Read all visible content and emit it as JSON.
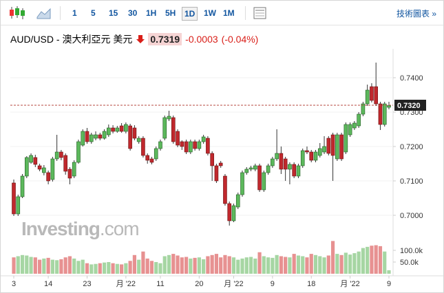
{
  "toolbar": {
    "intervals": [
      "1",
      "5",
      "15",
      "30",
      "1H",
      "5H",
      "1D",
      "1W",
      "1M"
    ],
    "selected": 6,
    "link": "技術圖表 »"
  },
  "header": {
    "instrument": "AUD/USD - 澳大利亞元 美元",
    "price": "0.7319",
    "change": "-0.0003",
    "change_percent": "(-0.04%)"
  },
  "watermark": {
    "brand": "Investing",
    "suffix": ".com"
  },
  "chart_data": {
    "type": "candlestick",
    "categories": [
      "3",
      null,
      null,
      null,
      null,
      null,
      null,
      null,
      "14",
      null,
      null,
      null,
      null,
      null,
      null,
      null,
      null,
      "23",
      null,
      null,
      null,
      null,
      null,
      null,
      null,
      null,
      "月 '22",
      null,
      null,
      null,
      null,
      null,
      null,
      null,
      "11",
      null,
      null,
      null,
      null,
      null,
      null,
      null,
      null,
      "20",
      null,
      null,
      null,
      null,
      null,
      null,
      null,
      "月 '22",
      null,
      null,
      null,
      null,
      null,
      null,
      null,
      null,
      "9",
      null,
      null,
      null,
      null,
      null,
      null,
      null,
      null,
      "18",
      null,
      null,
      null,
      null,
      null,
      null,
      null,
      null,
      "月 '22",
      null,
      null,
      null,
      null,
      null,
      null,
      null,
      null,
      "9"
    ],
    "open": [
      0.7094,
      0.7004,
      0.7054,
      0.7114,
      0.7154,
      0.7168,
      0.7144,
      0.7124,
      0.7124,
      0.7104,
      0.7164,
      0.7184,
      0.7174,
      0.7134,
      0.7114,
      0.7154,
      0.7204,
      0.7244,
      0.7214,
      0.7224,
      0.7234,
      0.7224,
      0.7234,
      0.7254,
      0.7244,
      0.726,
      0.7244,
      0.726,
      0.7254,
      0.7214,
      0.7224,
      0.7174,
      0.7164,
      0.7164,
      0.7194,
      0.7224,
      0.728,
      0.7284,
      0.7244,
      0.7214,
      0.7214,
      0.7184,
      0.7214,
      0.7194,
      0.7214,
      0.7224,
      0.718,
      0.7144,
      0.7152,
      0.7114,
      0.7034,
      0.6984,
      0.7024,
      0.706,
      0.7124,
      0.7134,
      0.7134,
      0.7144,
      0.7074,
      0.7124,
      0.7144,
      0.7164,
      0.718,
      0.7164,
      0.7134,
      0.7148,
      0.7114,
      0.7144,
      0.7188,
      0.7184,
      0.716,
      0.7174,
      0.7184,
      0.7224,
      0.7234,
      0.7164,
      0.7234,
      0.7184,
      0.7234,
      0.7254,
      0.726,
      0.7294,
      0.7324,
      0.7374,
      0.7374,
      0.7324,
      0.7264,
      0.7314
    ],
    "high": [
      0.7104,
      0.706,
      0.712,
      0.7172,
      0.718,
      0.7176,
      0.715,
      0.7146,
      0.713,
      0.717,
      0.7234,
      0.719,
      0.718,
      0.714,
      0.716,
      0.722,
      0.725,
      0.7254,
      0.724,
      0.7244,
      0.724,
      0.725,
      0.7264,
      0.7262,
      0.726,
      0.7268,
      0.727,
      0.7266,
      0.7262,
      0.723,
      0.723,
      0.718,
      0.717,
      0.72,
      0.722,
      0.729,
      0.7304,
      0.729,
      0.725,
      0.7218,
      0.722,
      0.722,
      0.722,
      0.722,
      0.7234,
      0.723,
      0.7186,
      0.715,
      0.7158,
      0.712,
      0.704,
      0.7034,
      0.7066,
      0.713,
      0.714,
      0.7144,
      0.715,
      0.715,
      0.713,
      0.715,
      0.717,
      0.725,
      0.72,
      0.717,
      0.7154,
      0.7154,
      0.715,
      0.7194,
      0.72,
      0.719,
      0.719,
      0.721,
      0.723,
      0.723,
      0.724,
      0.724,
      0.724,
      0.727,
      0.727,
      0.7274,
      0.73,
      0.733,
      0.738,
      0.7384,
      0.7444,
      0.733,
      0.733,
      0.733
    ],
    "low": [
      0.6998,
      0.6998,
      0.705,
      0.7108,
      0.715,
      0.714,
      0.7128,
      0.7116,
      0.709,
      0.7098,
      0.7158,
      0.716,
      0.7118,
      0.709,
      0.7108,
      0.715,
      0.72,
      0.7208,
      0.7208,
      0.7218,
      0.7218,
      0.722,
      0.7228,
      0.7238,
      0.724,
      0.724,
      0.7238,
      0.7188,
      0.7218,
      0.7208,
      0.7168,
      0.715,
      0.7148,
      0.7158,
      0.7188,
      0.7218,
      0.7274,
      0.7208,
      0.7198,
      0.719,
      0.7178,
      0.7178,
      0.7188,
      0.7188,
      0.7208,
      0.7174,
      0.71,
      0.7094,
      0.7138,
      0.7028,
      0.697,
      0.698,
      0.7018,
      0.7054,
      0.7118,
      0.7128,
      0.7128,
      0.7068,
      0.7068,
      0.7118,
      0.7138,
      0.7158,
      0.712,
      0.71,
      0.709,
      0.7108,
      0.7108,
      0.7138,
      0.7178,
      0.7154,
      0.7154,
      0.7168,
      0.7178,
      0.7174,
      0.71,
      0.7158,
      0.7158,
      0.7178,
      0.7228,
      0.7248,
      0.7254,
      0.7288,
      0.7318,
      0.7328,
      0.7318,
      0.7248,
      0.7258,
      0.7308
    ],
    "close": [
      0.7004,
      0.7054,
      0.7114,
      0.7168,
      0.7174,
      0.7148,
      0.7134,
      0.7138,
      0.71,
      0.7164,
      0.7184,
      0.7168,
      0.7128,
      0.7108,
      0.7154,
      0.7214,
      0.7244,
      0.7214,
      0.7234,
      0.7234,
      0.7224,
      0.7244,
      0.7254,
      0.7244,
      0.7254,
      0.7244,
      0.7264,
      0.7194,
      0.7224,
      0.7224,
      0.7174,
      0.716,
      0.7154,
      0.7194,
      0.7214,
      0.7284,
      0.7288,
      0.7214,
      0.7204,
      0.72,
      0.7184,
      0.7214,
      0.7194,
      0.7214,
      0.7228,
      0.718,
      0.7144,
      0.71,
      0.7144,
      0.7034,
      0.6984,
      0.7028,
      0.706,
      0.7124,
      0.7134,
      0.7138,
      0.7144,
      0.7074,
      0.7124,
      0.7144,
      0.7164,
      0.718,
      0.7134,
      0.7134,
      0.7148,
      0.7114,
      0.7144,
      0.7188,
      0.7184,
      0.716,
      0.7184,
      0.7194,
      0.72,
      0.718,
      0.7174,
      0.7234,
      0.7164,
      0.7264,
      0.7264,
      0.7268,
      0.7294,
      0.7324,
      0.7364,
      0.7334,
      0.7324,
      0.7264,
      0.7324,
      0.7319
    ],
    "volume": [
      70000,
      75000,
      80000,
      78000,
      72000,
      70000,
      60000,
      65000,
      68000,
      60000,
      58000,
      62000,
      70000,
      75000,
      65000,
      55000,
      60000,
      45000,
      40000,
      42000,
      45000,
      48000,
      50000,
      45000,
      42000,
      40000,
      45000,
      55000,
      80000,
      60000,
      95000,
      65000,
      55000,
      50000,
      45000,
      75000,
      80000,
      85000,
      78000,
      70000,
      72000,
      65000,
      68000,
      70000,
      62000,
      75000,
      80000,
      85000,
      70000,
      80000,
      75000,
      70000,
      60000,
      65000,
      70000,
      72000,
      65000,
      92000,
      75000,
      70000,
      68000,
      80000,
      75000,
      72000,
      70000,
      85000,
      78000,
      75000,
      70000,
      85000,
      80000,
      75000,
      70000,
      78000,
      140000,
      85000,
      80000,
      90000,
      82000,
      88000,
      95000,
      110000,
      115000,
      120000,
      122000,
      118000,
      95000,
      15000
    ],
    "ylim": [
      0.6944,
      0.7464
    ],
    "yticks": [
      {
        "value": 0.7,
        "label": "0.7000"
      },
      {
        "value": 0.71,
        "label": "0.7100"
      },
      {
        "value": 0.72,
        "label": "0.7200"
      },
      {
        "value": 0.73,
        "label": "0.7300"
      },
      {
        "value": 0.74,
        "label": "0.7400"
      }
    ],
    "volume_lim": [
      0,
      150000
    ],
    "volume_ticks": [
      {
        "value": 50000,
        "label": "50.0k"
      },
      {
        "value": 100000,
        "label": "100.0k"
      }
    ],
    "price_marker": {
      "value": 0.732,
      "label": "0.7320"
    },
    "grid": true,
    "up_color": "#5cb85c",
    "down_color": "#c0282d",
    "up_volume_color": "#a6d6a3",
    "down_volume_color": "#e79191",
    "marker_color": "#b5473f"
  }
}
